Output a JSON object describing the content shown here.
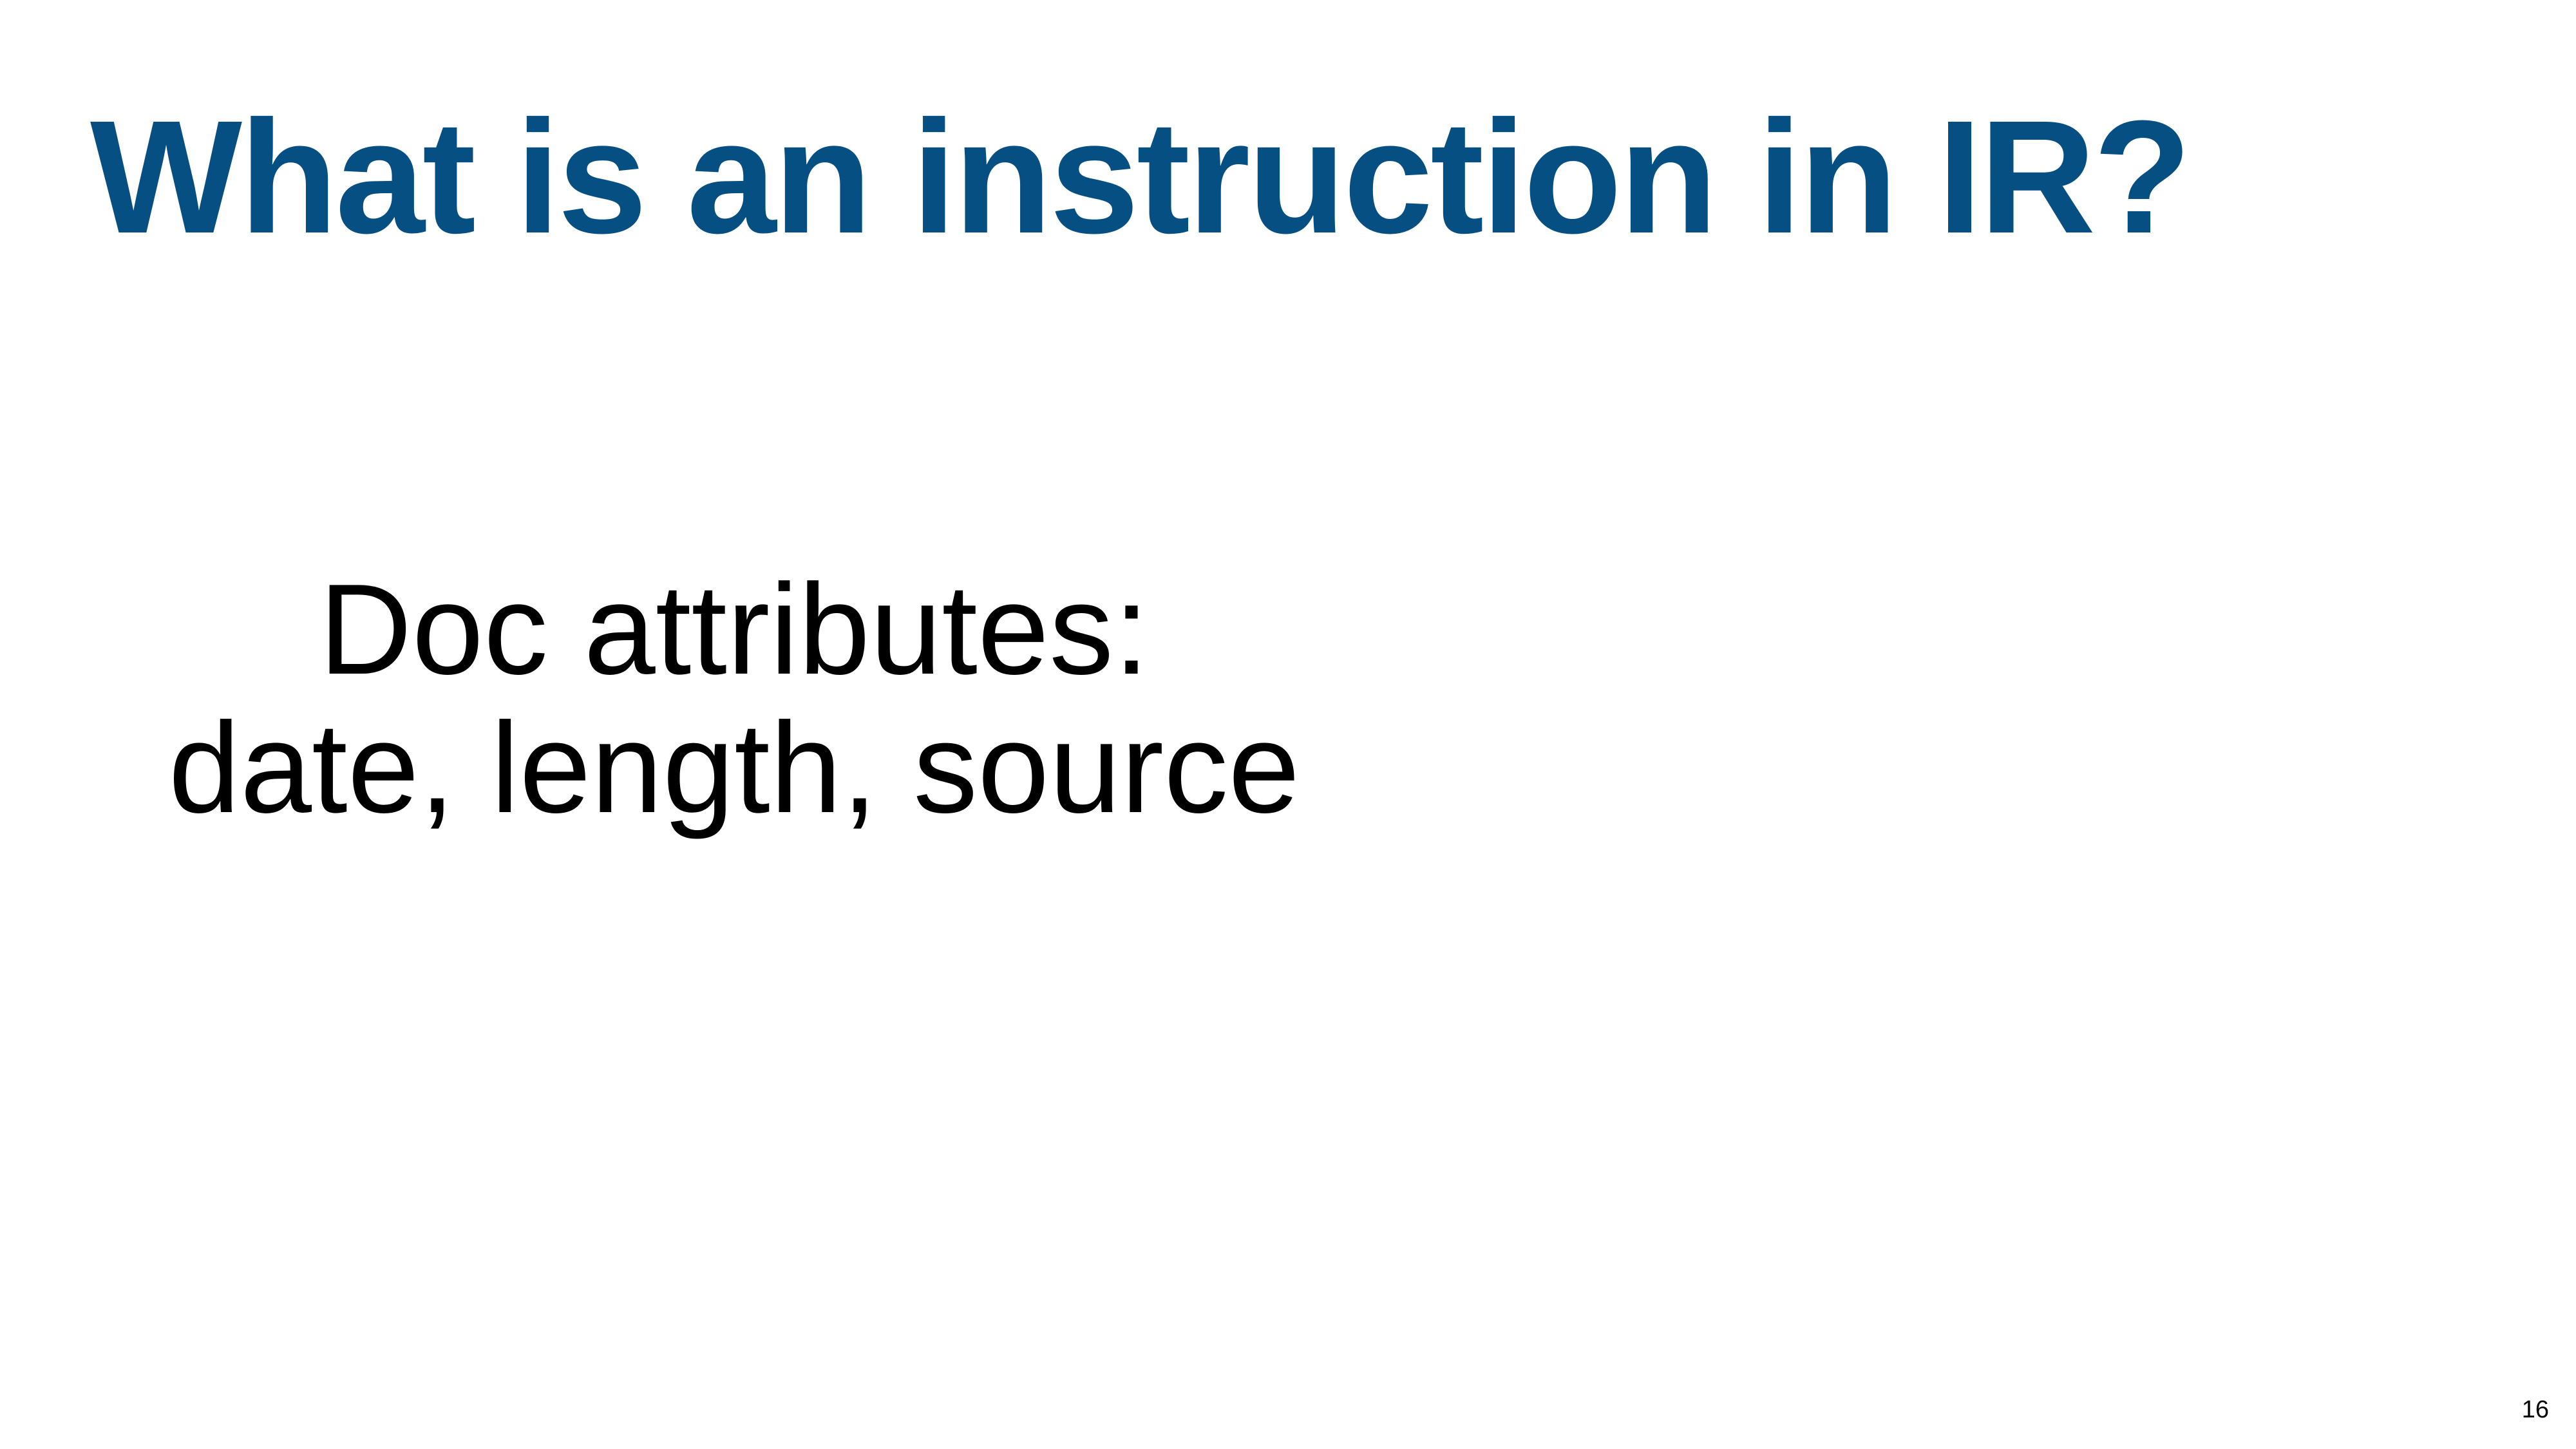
{
  "slide": {
    "title": "What is an instruction in IR?",
    "body_lines": [
      "Doc attributes:",
      "date, length, source"
    ],
    "page_number": "16"
  },
  "colors": {
    "title": "#064f82",
    "body_text": "#000000",
    "background": "#ffffff"
  }
}
